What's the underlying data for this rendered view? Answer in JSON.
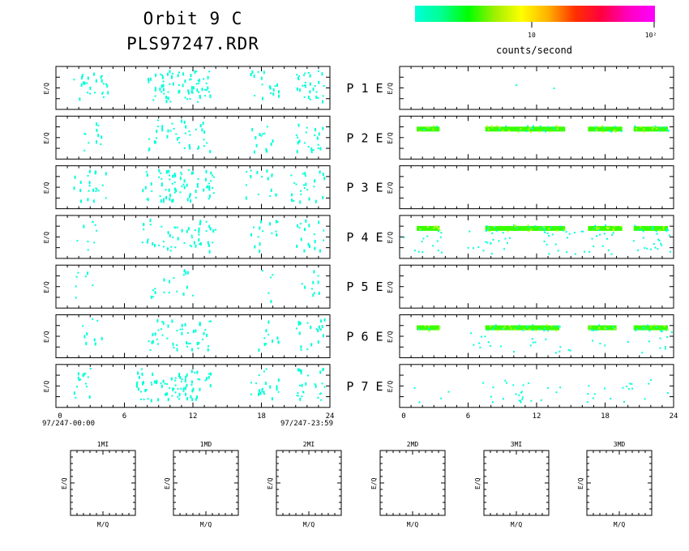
{
  "header": {
    "title_line1": "Orbit 9 C",
    "title_line2": "PLS97247.RDR"
  },
  "colorbar": {
    "label": "counts/second",
    "tick_10": "10",
    "tick_100": "10²",
    "stops": [
      "#00ffd8",
      "#00ff90",
      "#00ff00",
      "#a0f000",
      "#ffff00",
      "#ffb000",
      "#ff3000",
      "#ff0040",
      "#ff00c0",
      "#ff00ff"
    ]
  },
  "chart_data": {
    "type": "heatmap",
    "x_ticks": [
      "0",
      "6",
      "12",
      "18",
      "24"
    ],
    "xlim": [
      0,
      24
    ],
    "ylabel": "E/Q",
    "start_label": "97/247-00:00",
    "end_label": "97/247-23:59",
    "row_labels": [
      "P 1 E",
      "P 2 E",
      "P 3 E",
      "P 4 E",
      "P 5 E",
      "P 6 E",
      "P 7 E"
    ],
    "left_activity": [
      [
        [
          1.5,
          4.5,
          0.45
        ],
        [
          8,
          13.5,
          0.75
        ],
        [
          17,
          19.5,
          0.4
        ],
        [
          21,
          23.5,
          0.65
        ]
      ],
      [
        [
          2,
          4,
          0.3
        ],
        [
          8,
          13.5,
          0.4
        ],
        [
          17,
          19,
          0.35
        ],
        [
          21,
          23.5,
          0.45
        ]
      ],
      [
        [
          1.5,
          4.5,
          0.4
        ],
        [
          7.5,
          14,
          0.65
        ],
        [
          16.5,
          19.5,
          0.3
        ],
        [
          20.5,
          23.5,
          0.45
        ]
      ],
      [
        [
          1.5,
          3.5,
          0.25
        ],
        [
          7.5,
          14,
          0.45
        ],
        [
          17,
          19.5,
          0.35
        ],
        [
          21,
          23.5,
          0.4
        ]
      ],
      [
        [
          1.5,
          3.5,
          0.2
        ],
        [
          8,
          12,
          0.25
        ],
        [
          18,
          19.5,
          0.2
        ],
        [
          21.5,
          23,
          0.35
        ]
      ],
      [
        [
          2,
          4,
          0.25
        ],
        [
          8,
          13.5,
          0.5
        ],
        [
          17.5,
          19.5,
          0.3
        ],
        [
          21,
          23.5,
          0.45
        ]
      ],
      [
        [
          1.5,
          3,
          0.55
        ],
        [
          7,
          13.5,
          0.7
        ],
        [
          17,
          19.5,
          0.45
        ],
        [
          21,
          23.5,
          0.6
        ]
      ]
    ],
    "right_bands": [
      [],
      [
        [
          1.5,
          3.5
        ],
        [
          7.5,
          14.5
        ],
        [
          16.5,
          19.5
        ],
        [
          20.5,
          23.5
        ]
      ],
      [],
      [
        [
          1.5,
          3.5
        ],
        [
          7.5,
          14.5
        ],
        [
          16.5,
          19.5
        ],
        [
          20.5,
          23.5
        ]
      ],
      [],
      [
        [
          1.5,
          3.5
        ],
        [
          7.5,
          14
        ],
        [
          16.5,
          19
        ],
        [
          20.5,
          23.5
        ]
      ],
      []
    ],
    "right_sparse": [
      [
        [
          12,
          0.05
        ]
      ],
      [],
      [],
      [
        [
          2,
          0.35
        ],
        [
          8,
          0.45
        ],
        [
          14,
          0.4
        ],
        [
          17,
          0.35
        ],
        [
          22,
          0.45
        ]
      ],
      [],
      [
        [
          8,
          0.25
        ],
        [
          12,
          0.2
        ],
        [
          16,
          0.15
        ],
        [
          22,
          0.3
        ]
      ],
      [
        [
          3,
          0.1
        ],
        [
          9,
          0.3
        ],
        [
          12,
          0.3
        ],
        [
          18,
          0.2
        ],
        [
          21.5,
          0.25
        ]
      ]
    ]
  },
  "mq_panels": {
    "xlabel": "M/Q",
    "ylabel": "E/Q",
    "names": [
      "1MI",
      "1MD",
      "2MI",
      "2MD",
      "3MI",
      "3MD"
    ]
  }
}
